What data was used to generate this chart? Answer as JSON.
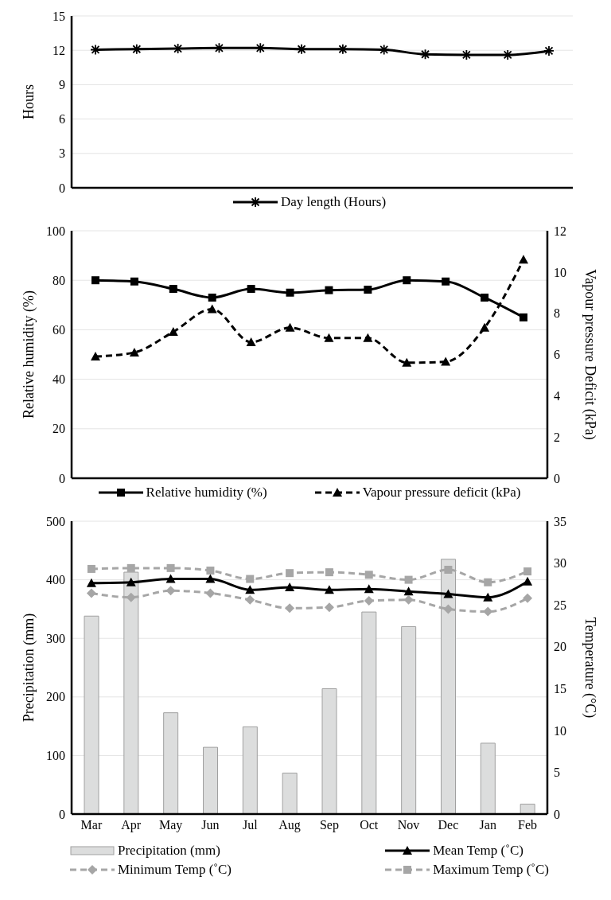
{
  "chart_data": [
    {
      "type": "line",
      "categories": [
        null,
        null,
        null,
        null,
        null,
        null,
        null,
        null,
        null,
        null,
        null,
        null
      ],
      "ylabel": "Hours",
      "ylim": [
        0,
        15
      ],
      "yticks": [
        0,
        3,
        6,
        9,
        12,
        15
      ],
      "grid": "y",
      "legend": "bottom",
      "series": [
        {
          "name": "Day length (Hours)",
          "color": "#000000",
          "marker": "cross",
          "line_style": "solid",
          "values": [
            12.05,
            12.1,
            12.15,
            12.2,
            12.2,
            12.1,
            12.1,
            12.05,
            11.65,
            11.6,
            11.6,
            11.95
          ]
        }
      ]
    },
    {
      "type": "line",
      "categories": [
        null,
        null,
        null,
        null,
        null,
        null,
        null,
        null,
        null,
        null,
        null,
        null
      ],
      "ylabel": "Relative humidity (%)",
      "y2label": "Vapour pressure Deficit (kPa)",
      "ylim": [
        0,
        100
      ],
      "yticks": [
        0,
        20,
        40,
        60,
        80,
        100
      ],
      "y2lim": [
        0,
        12
      ],
      "y2ticks": [
        0,
        2,
        4,
        6,
        8,
        10,
        12
      ],
      "grid": "y",
      "legend": "bottom",
      "series": [
        {
          "name": "Relative humidity (%)",
          "color": "#000000",
          "marker": "square",
          "line_style": "solid",
          "values": [
            80,
            79.5,
            76.5,
            73,
            76.5,
            75,
            76,
            76.2,
            80,
            79.5,
            73,
            65
          ]
        },
        {
          "name": "Vapour pressure deficit (kPa)",
          "color": "#000000",
          "marker": "triangle",
          "line_style": "dashed",
          "axis": "y2",
          "values": [
            5.9,
            6.1,
            7.1,
            8.2,
            6.6,
            7.3,
            6.8,
            6.8,
            5.6,
            5.65,
            7.3,
            10.6
          ]
        }
      ]
    },
    {
      "type": "bar",
      "categories": [
        "Mar",
        "Apr",
        "May",
        "Jun",
        "Jul",
        "Aug",
        "Sep",
        "Oct",
        "Nov",
        "Dec",
        "Jan",
        "Feb"
      ],
      "ylabel": "Precipitation (mm)",
      "y2label": "Temperature (°C)",
      "ylim": [
        0,
        500
      ],
      "yticks": [
        0,
        100,
        200,
        300,
        400,
        500
      ],
      "y2lim": [
        0,
        35
      ],
      "y2ticks": [
        0,
        5,
        10,
        15,
        20,
        25,
        30,
        35
      ],
      "grid": "y",
      "legend": "bottom",
      "series": [
        {
          "name": "Precipitation (mm)",
          "type": "bar",
          "color": "#dcdddd",
          "values": [
            338,
            413,
            173,
            114,
            149,
            70,
            214,
            345,
            320,
            435,
            121,
            17
          ]
        },
        {
          "name": "Mean Temp (˚C)",
          "type": "line",
          "color": "#000000",
          "marker": "triangle",
          "line_style": "solid",
          "axis": "y2",
          "values": [
            27.6,
            27.7,
            28.1,
            28.1,
            26.8,
            27.1,
            26.8,
            26.9,
            26.6,
            26.3,
            25.9,
            27.8
          ]
        },
        {
          "name": "Minimum Temp (˚C)",
          "type": "line",
          "color": "#a6a6a6",
          "marker": "diamond",
          "line_style": "dashed",
          "axis": "y2",
          "values": [
            26.4,
            25.9,
            26.7,
            26.4,
            25.6,
            24.6,
            24.7,
            25.5,
            25.6,
            24.5,
            24.2,
            25.8
          ]
        },
        {
          "name": "Maximum Temp (˚C)",
          "type": "line",
          "color": "#a6a6a6",
          "marker": "square",
          "line_style": "dashed",
          "axis": "y2",
          "values": [
            29.3,
            29.4,
            29.4,
            29.1,
            28.1,
            28.8,
            28.9,
            28.6,
            28.0,
            29.2,
            27.7,
            29.0
          ]
        }
      ]
    }
  ]
}
